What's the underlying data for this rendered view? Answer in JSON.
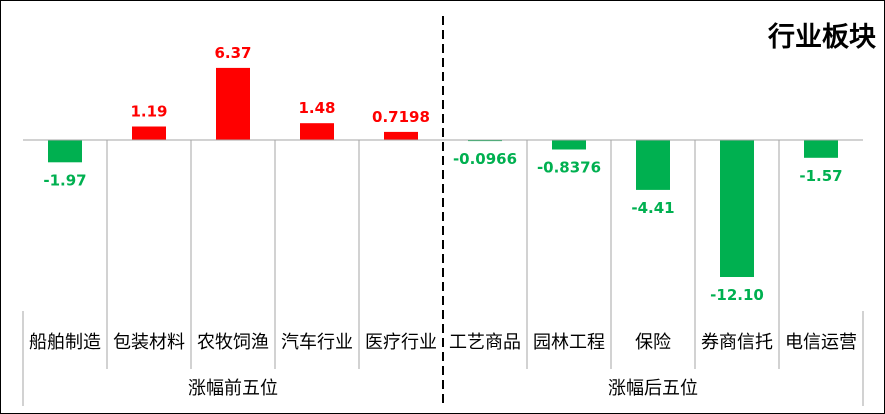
{
  "chart_data": {
    "type": "bar",
    "title": "行业板块",
    "categories": [
      "船舶制造",
      "包装材料",
      "农牧饲渔",
      "汽车行业",
      "医疗行业",
      "工艺商品",
      "园林工程",
      "保险",
      "券商信托",
      "电信运营"
    ],
    "values": [
      -1.97,
      1.19,
      6.37,
      1.48,
      0.7198,
      -0.0966,
      -0.8376,
      -4.41,
      -12.1,
      -1.57
    ],
    "value_labels": [
      "-1.97",
      "1.19",
      "6.37",
      "1.48",
      "0.7198",
      "-0.0966",
      "-0.8376",
      "-4.41",
      "-12.10",
      "-1.57"
    ],
    "groups": [
      {
        "label": "涨幅前五位",
        "count": 5
      },
      {
        "label": "涨幅后五位",
        "count": 5
      }
    ],
    "xlabel": "",
    "ylabel": "",
    "ylim": [
      -12.1,
      6.37
    ],
    "grid": false,
    "legend": "none",
    "colors": {
      "positive": "#ff0000",
      "negative": "#00b050",
      "axis": "#a6a6a6",
      "divider": "#000000"
    }
  }
}
